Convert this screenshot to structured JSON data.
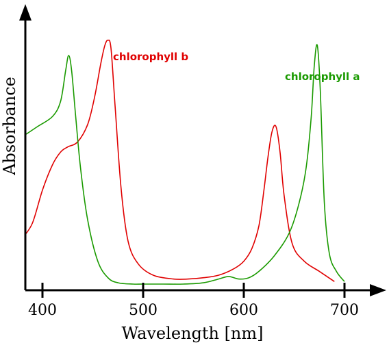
{
  "chart_data": {
    "type": "line",
    "title": "",
    "xlabel": "Wavelength [nm]",
    "ylabel": "Absorbance",
    "xlim": [
      380,
      710
    ],
    "ylim": [
      0,
      1
    ],
    "xticks": [
      400,
      500,
      600,
      700
    ],
    "grid": false,
    "legend": "none (series labelled directly on the plot)",
    "series": [
      {
        "name": "chlorophyll b",
        "color": "#e00000",
        "x": [
          380,
          390,
          400,
          410,
          418,
          425,
          435,
          445,
          452,
          458,
          462,
          465,
          468,
          472,
          478,
          485,
          495,
          510,
          530,
          545,
          560,
          575,
          590,
          600,
          608,
          615,
          620,
          624,
          628,
          632,
          636,
          640,
          648,
          660,
          675,
          690
        ],
        "y": [
          0.18,
          0.24,
          0.37,
          0.47,
          0.52,
          0.54,
          0.56,
          0.63,
          0.74,
          0.87,
          0.94,
          0.96,
          0.93,
          0.71,
          0.38,
          0.17,
          0.08,
          0.035,
          0.02,
          0.02,
          0.025,
          0.035,
          0.06,
          0.09,
          0.14,
          0.23,
          0.37,
          0.5,
          0.6,
          0.62,
          0.52,
          0.35,
          0.16,
          0.09,
          0.05,
          0.01
        ]
      },
      {
        "name": "chlorophyll a",
        "color": "#1a9a00",
        "x": [
          380,
          395,
          410,
          418,
          423,
          426,
          429,
          433,
          438,
          445,
          455,
          465,
          475,
          490,
          500,
          520,
          540,
          560,
          575,
          585,
          595,
          605,
          615,
          630,
          645,
          655,
          662,
          667,
          670,
          673,
          676,
          680,
          685,
          692,
          700
        ],
        "y": [
          0.58,
          0.62,
          0.66,
          0.72,
          0.84,
          0.9,
          0.84,
          0.66,
          0.45,
          0.25,
          0.09,
          0.025,
          0.005,
          0.0,
          0.0,
          0.0,
          0.0,
          0.005,
          0.02,
          0.03,
          0.02,
          0.025,
          0.05,
          0.11,
          0.2,
          0.32,
          0.46,
          0.66,
          0.86,
          0.94,
          0.76,
          0.32,
          0.12,
          0.05,
          0.01
        ]
      }
    ]
  }
}
